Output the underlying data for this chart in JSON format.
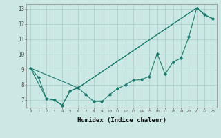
{
  "title": "",
  "xlabel": "Humidex (Indice chaleur)",
  "bg_color": "#cce8e4",
  "line_color": "#1a7a6e",
  "grid_color": "#aacfca",
  "xlim": [
    -0.5,
    23.5
  ],
  "ylim": [
    6.5,
    13.3
  ],
  "xticks": [
    0,
    1,
    2,
    3,
    4,
    5,
    6,
    7,
    8,
    9,
    10,
    11,
    12,
    13,
    14,
    15,
    16,
    17,
    18,
    19,
    20,
    21,
    22,
    23
  ],
  "yticks": [
    7,
    8,
    9,
    10,
    11,
    12,
    13
  ],
  "series1_x": [
    0,
    1,
    2,
    3,
    4,
    5,
    6,
    7,
    8,
    9,
    10,
    11,
    12,
    13,
    14,
    15,
    16,
    17,
    18,
    19,
    20,
    21,
    22,
    23
  ],
  "series1_y": [
    9.1,
    8.5,
    7.1,
    7.0,
    6.65,
    7.6,
    7.8,
    7.35,
    6.9,
    6.9,
    7.35,
    7.75,
    8.0,
    8.3,
    8.35,
    8.55,
    10.05,
    8.7,
    9.5,
    9.75,
    11.15,
    13.05,
    12.6,
    12.35
  ],
  "series2_x": [
    0,
    2,
    3,
    4,
    5,
    6,
    21,
    22,
    23
  ],
  "series2_y": [
    9.1,
    7.1,
    7.0,
    6.65,
    7.6,
    7.8,
    13.05,
    12.6,
    12.35
  ],
  "series3_x": [
    0,
    6,
    21,
    22,
    23
  ],
  "series3_y": [
    9.1,
    7.8,
    13.05,
    12.6,
    12.35
  ]
}
